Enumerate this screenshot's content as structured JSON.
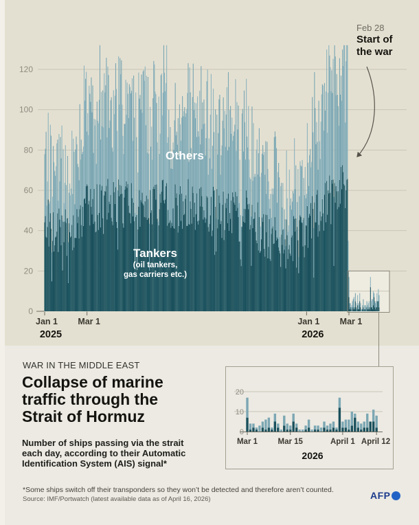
{
  "meta": {
    "kicker": "WAR IN THE MIDDLE EAST",
    "title_lines": [
      "Collapse of marine",
      "traffic through the",
      "Strait of Hormuz"
    ],
    "subtitle_lines": [
      "Number of ships passing via the strait",
      "each day, according to their Automatic",
      "Identification System (AIS) signal*"
    ],
    "footnote": "*Some ships switch off their transponders so they won’t be detected and therefore aren’t counted.",
    "source": "Source: IMF/Portwatch (latest available data as of April 16, 2026)",
    "logo": "AFP"
  },
  "annotation": {
    "date_label": "Feb 28",
    "event_line1": "Start of",
    "event_line2": "the war"
  },
  "labels": {
    "others": "Others",
    "tankers": "Tankers",
    "tankers_sub1": "(oil tankers,",
    "tankers_sub2": "gas carriers etc.)"
  },
  "colors": {
    "page": "#f2f0e9",
    "panel_top": "#e4e0d1",
    "panel_bottom": "#eceae3",
    "tankers": "#1a505c",
    "tankers_alt": "#225964",
    "others": "#7ca7b3",
    "others_alt": "#90b5bf",
    "grid": "#c9c6b7",
    "axis_text": "#8e8c80",
    "tick": "#6b695d",
    "arrow": "#55534a",
    "highlight_box_stroke": "#8b897b",
    "highlight_box_fill": "#f0eee4",
    "afp_navy": "#1c3b8c",
    "afp_blue": "#2363c5"
  },
  "chart_data": [
    {
      "id": "main",
      "type": "bar",
      "subtype": "stacked-daily",
      "title": "",
      "xlabel": "",
      "ylabel": "",
      "ylim": [
        0,
        135
      ],
      "y_ticks": [
        0,
        20,
        40,
        60,
        80,
        100,
        120
      ],
      "x_ticks": [
        {
          "label": "Jan 1",
          "year": "2025",
          "day": 0
        },
        {
          "label": "Mar 1",
          "day": 59
        },
        {
          "label": "Jan 1",
          "year": "2026",
          "day": 365
        },
        {
          "label": "Mar 1",
          "day": 424
        }
      ],
      "series": [
        {
          "name": "Tankers",
          "note": "(oil tankers, gas carriers etc.)",
          "color": "#1a505c"
        },
        {
          "name": "Others",
          "color": "#7ca7b3"
        }
      ],
      "x_start": "2025-01-01",
      "x_end": "2026-04-12",
      "war_day": 423,
      "feb28_value": [
        20,
        15
      ],
      "prewar_weekly": {
        "interval_days": 7,
        "tankers": [
          42,
          44,
          40,
          43,
          41,
          38,
          45,
          47,
          50,
          52,
          48,
          54,
          50,
          55,
          52,
          56,
          53,
          57,
          54,
          52,
          55,
          53,
          56,
          52,
          54,
          51,
          53,
          50,
          55,
          52,
          50,
          54,
          51,
          48,
          52,
          50,
          47,
          51,
          48,
          45,
          48,
          44,
          42,
          40,
          38,
          36,
          39,
          35,
          33,
          36,
          34,
          37,
          40,
          44,
          47,
          50,
          53,
          56,
          58,
          60,
          62
        ],
        "others": [
          33,
          30,
          28,
          34,
          30,
          27,
          36,
          38,
          42,
          48,
          44,
          52,
          45,
          50,
          48,
          52,
          47,
          54,
          49,
          46,
          52,
          48,
          50,
          46,
          50,
          44,
          48,
          45,
          50,
          46,
          44,
          49,
          45,
          42,
          47,
          43,
          40,
          46,
          41,
          38,
          42,
          36,
          34,
          32,
          28,
          26,
          30,
          25,
          24,
          27,
          24,
          28,
          32,
          36,
          40,
          44,
          48,
          52,
          55,
          58,
          62
        ]
      },
      "daily_variation": {
        "tankers": 13,
        "others": 20,
        "dip_chance": 0.04,
        "dip_scale": 0.5,
        "peak_chance": 0.05,
        "peak_boost": 12,
        "seed": 42
      },
      "annotation": {
        "day_label": "Feb 28",
        "text": "Start of the war"
      },
      "grid": true,
      "legend_position": "on-chart"
    },
    {
      "id": "inset",
      "type": "bar",
      "subtype": "stacked-daily",
      "title": "2026",
      "ylim": [
        0,
        24
      ],
      "y_ticks": [
        0,
        10,
        20
      ],
      "x_ticks": [
        {
          "label": "Mar 1",
          "day": 0
        },
        {
          "label": "Mar 15",
          "day": 14
        },
        {
          "label": "April 1",
          "day": 31
        },
        {
          "label": "April 12",
          "day": 42
        }
      ],
      "series_order": [
        "tankers",
        "others"
      ],
      "values": [
        [
          7,
          10
        ],
        [
          1,
          3
        ],
        [
          2,
          2
        ],
        [
          1,
          1
        ],
        [
          0,
          3
        ],
        [
          2,
          3
        ],
        [
          1,
          5
        ],
        [
          2,
          5
        ],
        [
          1,
          1
        ],
        [
          5,
          4
        ],
        [
          2,
          2
        ],
        [
          0,
          1
        ],
        [
          3,
          5
        ],
        [
          1,
          3
        ],
        [
          1,
          2
        ],
        [
          5,
          4
        ],
        [
          2,
          2
        ],
        [
          0,
          1
        ],
        [
          0,
          1
        ],
        [
          1,
          2
        ],
        [
          2,
          4
        ],
        [
          0,
          1
        ],
        [
          1,
          2
        ],
        [
          1,
          2
        ],
        [
          0,
          2
        ],
        [
          2,
          3
        ],
        [
          1,
          2
        ],
        [
          1,
          3
        ],
        [
          2,
          3
        ],
        [
          1,
          1
        ],
        [
          12,
          5
        ],
        [
          2,
          3
        ],
        [
          2,
          4
        ],
        [
          1,
          5
        ],
        [
          3,
          7
        ],
        [
          7,
          2
        ],
        [
          2,
          3
        ],
        [
          1,
          3
        ],
        [
          2,
          3
        ],
        [
          2,
          7
        ],
        [
          5,
          0
        ],
        [
          5,
          6
        ],
        [
          2,
          6
        ]
      ],
      "grid": true
    }
  ]
}
